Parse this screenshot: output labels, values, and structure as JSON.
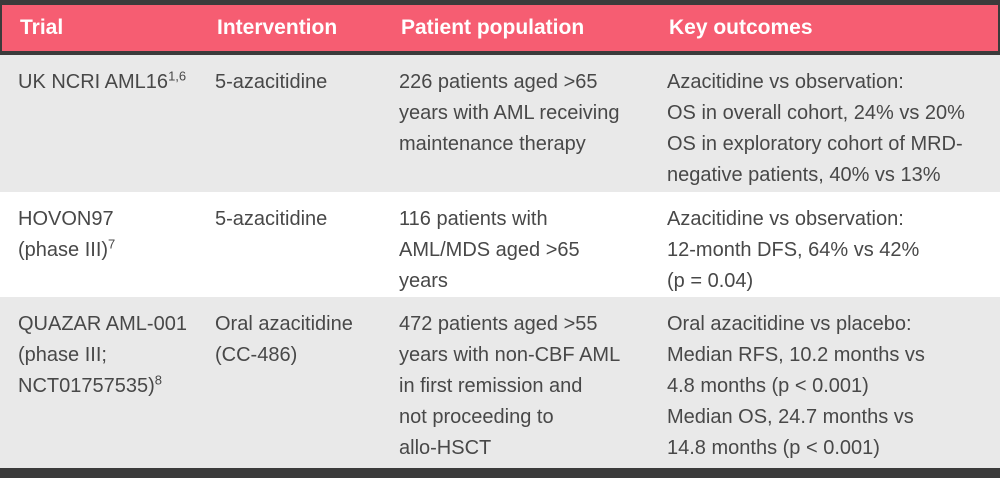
{
  "colors": {
    "header_bg": "#f65d72",
    "header_text": "#ffffff",
    "dark_bar": "#3b3b3b",
    "row_alt_bg": "#e9e9e9",
    "row_bg": "#ffffff",
    "body_text": "#484848"
  },
  "table": {
    "headers": [
      "Trial",
      "Intervention",
      "Patient population",
      "Key outcomes"
    ],
    "rows": [
      {
        "trial": "UK NCRI AML16",
        "trial_sup": "1,6",
        "intervention": "5-azacitidine",
        "patient_population": [
          "226 patients aged >65",
          "years with AML receiving",
          "maintenance therapy"
        ],
        "key_outcomes": [
          "Azacitidine vs observation:",
          "OS in overall cohort, 24% vs 20%",
          "OS in exploratory cohort of MRD-",
          "negative patients, 40% vs 13%"
        ]
      },
      {
        "trial": [
          "HOVON97",
          "(phase III)"
        ],
        "trial_sup": "7",
        "intervention": "5-azacitidine",
        "patient_population": [
          "116 patients with",
          "AML/MDS aged >65",
          "years"
        ],
        "key_outcomes": [
          "Azacitidine vs observation:",
          "12-month DFS, 64% vs 42%",
          "(p = 0.04)"
        ]
      },
      {
        "trial": [
          "QUAZAR AML-001",
          "(phase III;",
          "NCT01757535)"
        ],
        "trial_sup": "8",
        "intervention": [
          "Oral azacitidine",
          "(CC-486)"
        ],
        "patient_population": [
          "472 patients aged >55",
          "years with non-CBF AML",
          "in first remission and",
          "not proceeding to",
          "allo-HSCT"
        ],
        "key_outcomes": [
          "Oral azacitidine vs placebo:",
          "Median RFS, 10.2 months vs",
          "4.8 months (p < 0.001)",
          "Median OS, 24.7 months vs",
          "14.8 months (p < 0.001)"
        ]
      }
    ]
  }
}
